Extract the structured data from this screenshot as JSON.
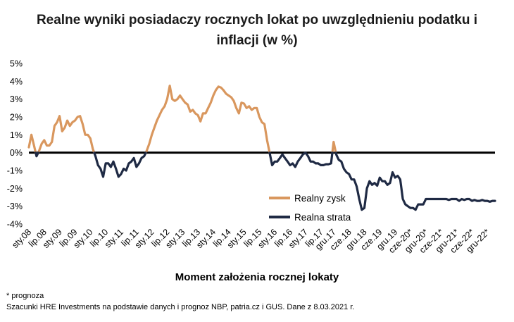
{
  "title_line1": "Realne wyniki posiadaczy rocznych lokat po uwzględnieniu podatku i",
  "title_line2": "inflacji (w %)",
  "xlabel": "Moment założenia rocznej lokaty",
  "footnote1": "* prognoza",
  "footnote2": "Szacunki HRE Investments na podstawie danych i prognoz NBP,  patria.cz  i GUS. Dane z 8.03.2021 r.",
  "chart_data": {
    "type": "line",
    "title": "Realne wyniki posiadaczy rocznych lokat po uwzględnieniu podatku i inflacji (w %)",
    "xlabel": "Moment założenia rocznej lokaty",
    "ylabel": "",
    "yticks": [
      "5%",
      "4%",
      "3%",
      "2%",
      "1%",
      "0%",
      "-1%",
      "-2%",
      "-3%",
      "-4%"
    ],
    "ylim": [
      -4,
      5
    ],
    "x_tick_labels": [
      "sty.08",
      "lip.08",
      "sty.09",
      "lip.09",
      "sty.10",
      "lip.10",
      "sty.11",
      "lip.11",
      "sty.12",
      "lip.12",
      "sty.13",
      "lip.13",
      "sty.14",
      "lip.14",
      "sty.15",
      "lip.15",
      "sty.16",
      "lip.16",
      "sty.17",
      "lip.17",
      "gru.17",
      "cze.18",
      "gru.18",
      "cze.19",
      "gru.19",
      "cze-20*",
      "gru-20*",
      "cze-21*",
      "gru-21*",
      "cze-22*",
      "gru-22*"
    ],
    "x_tick_month_index": [
      0,
      6,
      12,
      18,
      24,
      30,
      36,
      42,
      48,
      54,
      60,
      66,
      72,
      78,
      84,
      90,
      96,
      102,
      108,
      114,
      119,
      125,
      131,
      137,
      143,
      149,
      155,
      161,
      167,
      173,
      179
    ],
    "start_month": "sty.08",
    "values": [
      0.3,
      1.0,
      0.4,
      -0.2,
      0.1,
      0.5,
      0.7,
      0.4,
      0.4,
      0.6,
      1.5,
      1.7,
      2.05,
      1.2,
      1.4,
      1.8,
      1.5,
      1.7,
      1.8,
      2.0,
      2.05,
      1.6,
      1.0,
      1.0,
      0.8,
      0.2,
      -0.2,
      -0.7,
      -0.9,
      -1.35,
      -0.6,
      -0.6,
      -0.8,
      -0.5,
      -0.9,
      -1.35,
      -1.2,
      -0.9,
      -1.0,
      -0.6,
      -0.5,
      -0.3,
      -0.8,
      -0.6,
      -0.3,
      -0.2,
      0.1,
      0.5,
      1.0,
      1.4,
      1.8,
      2.1,
      2.4,
      2.6,
      3.0,
      3.75,
      3.0,
      2.9,
      3.0,
      3.2,
      3.0,
      2.8,
      2.7,
      2.3,
      2.4,
      2.2,
      2.1,
      1.75,
      2.2,
      2.2,
      2.5,
      2.8,
      3.2,
      3.5,
      3.7,
      3.65,
      3.5,
      3.3,
      3.2,
      3.1,
      2.9,
      2.5,
      2.2,
      2.8,
      2.75,
      2.5,
      2.6,
      2.4,
      2.5,
      2.5,
      2.0,
      1.7,
      1.6,
      0.7,
      0.0,
      -0.7,
      -0.5,
      -0.5,
      -0.3,
      -0.1,
      -0.3,
      -0.5,
      -0.7,
      -0.6,
      -0.8,
      -0.5,
      -0.3,
      -0.1,
      0.0,
      -0.2,
      -0.5,
      -0.5,
      -0.6,
      -0.6,
      -0.7,
      -0.7,
      -0.65,
      -0.65,
      -0.6,
      0.6,
      -0.1,
      -0.4,
      -0.5,
      -0.9,
      -1.1,
      -1.2,
      -1.5,
      -1.5,
      -1.9,
      -2.6,
      -3.2,
      -3.1,
      -2.0,
      -1.6,
      -1.8,
      -1.7,
      -1.85,
      -1.4,
      -1.6,
      -1.6,
      -1.8,
      -1.7,
      -1.1,
      -1.4,
      -1.3,
      -1.5,
      -2.6,
      -2.9,
      -3.0,
      -3.1,
      -3.1,
      -3.2,
      -2.9,
      -2.9,
      -2.9,
      -2.6,
      -2.6,
      -2.6,
      -2.6,
      -2.6,
      -2.6,
      -2.6,
      -2.6,
      -2.6,
      -2.65,
      -2.6,
      -2.6,
      -2.6,
      -2.7,
      -2.6,
      -2.65,
      -2.6,
      -2.6,
      -2.7,
      -2.65,
      -2.7,
      -2.7,
      -2.65,
      -2.7,
      -2.7,
      -2.75,
      -2.7,
      -2.7
    ],
    "series": [
      {
        "name": "Realny zysk",
        "sign": "positive",
        "color": "#D9975E"
      },
      {
        "name": "Realna strata",
        "sign": "negative",
        "color": "#1F2A44"
      }
    ],
    "legend_position": "center-right",
    "grid": false,
    "zero_line": true
  }
}
